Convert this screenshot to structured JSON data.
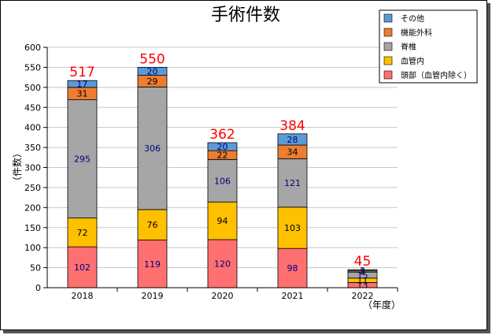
{
  "chart_data": {
    "type": "bar",
    "stacked": true,
    "title": "手術件数",
    "xlabel": "（年度）",
    "ylabel": "（件数）",
    "ylim": [
      0,
      600
    ],
    "ytick_step": 50,
    "grid": true,
    "legend_position": "top-right",
    "categories": [
      "2018",
      "2019",
      "2020",
      "2021",
      "2022"
    ],
    "totals": [
      517,
      550,
      362,
      384,
      45
    ],
    "series": [
      {
        "name": "頭部（血管内除く）",
        "color": "#ff7070",
        "label_color": "#000080",
        "values": [
          102,
          119,
          120,
          98,
          13
        ]
      },
      {
        "name": "血管内",
        "color": "#ffc000",
        "label_color": "#000000",
        "values": [
          72,
          76,
          94,
          103,
          11
        ]
      },
      {
        "name": "脊椎",
        "color": "#a6a6a6",
        "label_color": "#000080",
        "values": [
          295,
          306,
          106,
          121,
          15
        ]
      },
      {
        "name": "機能外科",
        "color": "#ed7d31",
        "label_color": "#000000",
        "values": [
          31,
          29,
          22,
          34,
          3
        ]
      },
      {
        "name": "その他",
        "color": "#5b9bd5",
        "label_color": "#000080",
        "values": [
          17,
          20,
          20,
          28,
          3
        ]
      }
    ]
  }
}
